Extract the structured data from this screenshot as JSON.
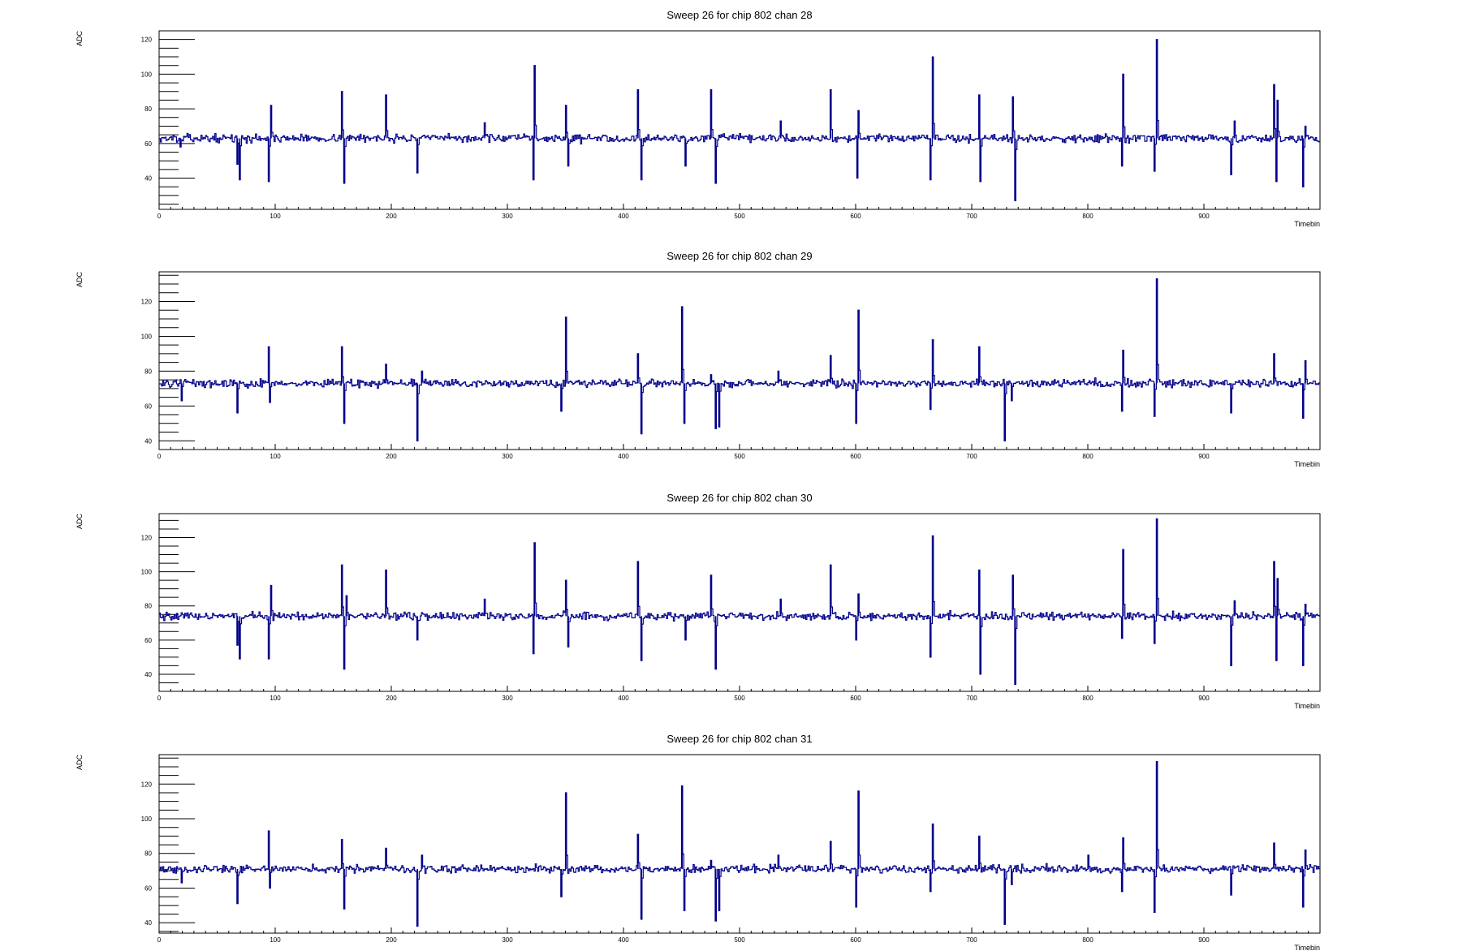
{
  "style": {
    "line_color": "#00008b",
    "frame_color": "#000000",
    "background": "#ffffff"
  },
  "chart_data": [
    {
      "type": "line",
      "title": "Sweep 26 for chip 802 chan 28",
      "xlabel": "Timebin",
      "ylabel": "ADC",
      "xlim": [
        0,
        1000
      ],
      "ylim": [
        22,
        125
      ],
      "xticks": [
        0,
        100,
        200,
        300,
        400,
        500,
        600,
        700,
        800,
        900
      ],
      "yticks": [
        40,
        60,
        80,
        100,
        120
      ],
      "baseline": 63,
      "noise": 1.6,
      "spikes": [
        [
          18,
          58
        ],
        [
          67,
          48
        ],
        [
          69,
          39
        ],
        [
          94,
          38
        ],
        [
          96,
          82
        ],
        [
          157,
          90
        ],
        [
          159,
          37
        ],
        [
          195,
          88
        ],
        [
          222,
          43
        ],
        [
          280,
          72
        ],
        [
          322,
          39
        ],
        [
          323,
          105
        ],
        [
          350,
          82
        ],
        [
          352,
          47
        ],
        [
          412,
          91
        ],
        [
          415,
          39
        ],
        [
          453,
          47
        ],
        [
          475,
          91
        ],
        [
          479,
          37
        ],
        [
          535,
          73
        ],
        [
          578,
          91
        ],
        [
          601,
          40
        ],
        [
          602,
          79
        ],
        [
          664,
          39
        ],
        [
          666,
          110
        ],
        [
          706,
          88
        ],
        [
          707,
          38
        ],
        [
          735,
          87
        ],
        [
          737,
          27
        ],
        [
          829,
          47
        ],
        [
          830,
          100
        ],
        [
          857,
          44
        ],
        [
          859,
          120
        ],
        [
          923,
          42
        ],
        [
          926,
          73
        ],
        [
          960,
          94
        ],
        [
          962,
          38
        ],
        [
          963,
          85
        ],
        [
          985,
          35
        ],
        [
          987,
          70
        ]
      ]
    },
    {
      "type": "line",
      "title": "Sweep 26 for chip 802 chan 29",
      "xlabel": "Timebin",
      "ylabel": "ADC",
      "xlim": [
        0,
        1000
      ],
      "ylim": [
        35,
        137
      ],
      "xticks": [
        0,
        100,
        200,
        300,
        400,
        500,
        600,
        700,
        800,
        900
      ],
      "yticks": [
        40,
        60,
        80,
        100,
        120
      ],
      "baseline": 73,
      "noise": 1.6,
      "spikes": [
        [
          19,
          63
        ],
        [
          67,
          56
        ],
        [
          94,
          94
        ],
        [
          95,
          62
        ],
        [
          157,
          94
        ],
        [
          159,
          50
        ],
        [
          195,
          84
        ],
        [
          222,
          40
        ],
        [
          226,
          80
        ],
        [
          346,
          57
        ],
        [
          350,
          111
        ],
        [
          412,
          90
        ],
        [
          415,
          44
        ],
        [
          450,
          117
        ],
        [
          452,
          50
        ],
        [
          475,
          78
        ],
        [
          479,
          47
        ],
        [
          482,
          48
        ],
        [
          533,
          80
        ],
        [
          578,
          89
        ],
        [
          600,
          50
        ],
        [
          602,
          115
        ],
        [
          664,
          58
        ],
        [
          666,
          98
        ],
        [
          706,
          94
        ],
        [
          728,
          40
        ],
        [
          734,
          63
        ],
        [
          829,
          57
        ],
        [
          830,
          92
        ],
        [
          857,
          54
        ],
        [
          859,
          133
        ],
        [
          923,
          56
        ],
        [
          960,
          90
        ],
        [
          985,
          53
        ],
        [
          987,
          86
        ]
      ]
    },
    {
      "type": "line",
      "title": "Sweep 26 for chip 802 chan 30",
      "xlabel": "Timebin",
      "ylabel": "ADC",
      "xlim": [
        0,
        1000
      ],
      "ylim": [
        30,
        134
      ],
      "xticks": [
        0,
        100,
        200,
        300,
        400,
        500,
        600,
        700,
        800,
        900
      ],
      "yticks": [
        40,
        60,
        80,
        100,
        120
      ],
      "baseline": 74,
      "noise": 1.6,
      "spikes": [
        [
          67,
          57
        ],
        [
          69,
          49
        ],
        [
          94,
          49
        ],
        [
          96,
          92
        ],
        [
          157,
          104
        ],
        [
          159,
          43
        ],
        [
          161,
          86
        ],
        [
          195,
          101
        ],
        [
          222,
          60
        ],
        [
          280,
          84
        ],
        [
          322,
          52
        ],
        [
          323,
          117
        ],
        [
          350,
          95
        ],
        [
          352,
          56
        ],
        [
          412,
          106
        ],
        [
          415,
          48
        ],
        [
          453,
          60
        ],
        [
          475,
          98
        ],
        [
          479,
          43
        ],
        [
          535,
          84
        ],
        [
          578,
          104
        ],
        [
          600,
          60
        ],
        [
          602,
          87
        ],
        [
          664,
          50
        ],
        [
          666,
          121
        ],
        [
          706,
          101
        ],
        [
          707,
          40
        ],
        [
          735,
          98
        ],
        [
          737,
          34
        ],
        [
          829,
          61
        ],
        [
          830,
          113
        ],
        [
          857,
          58
        ],
        [
          859,
          131
        ],
        [
          923,
          45
        ],
        [
          926,
          83
        ],
        [
          960,
          106
        ],
        [
          962,
          48
        ],
        [
          963,
          96
        ],
        [
          985,
          45
        ],
        [
          987,
          81
        ]
      ]
    },
    {
      "type": "line",
      "title": "Sweep 26 for chip 802 chan 31",
      "xlabel": "Timebin",
      "ylabel": "ADC",
      "xlim": [
        0,
        1000
      ],
      "ylim": [
        34,
        137
      ],
      "xticks": [
        0,
        100,
        200,
        300,
        400,
        500,
        600,
        700,
        800,
        900
      ],
      "yticks": [
        40,
        60,
        80,
        100,
        120
      ],
      "baseline": 71,
      "noise": 1.6,
      "spikes": [
        [
          19,
          63
        ],
        [
          67,
          51
        ],
        [
          94,
          93
        ],
        [
          95,
          60
        ],
        [
          157,
          88
        ],
        [
          159,
          48
        ],
        [
          195,
          83
        ],
        [
          222,
          38
        ],
        [
          226,
          79
        ],
        [
          346,
          55
        ],
        [
          350,
          115
        ],
        [
          412,
          91
        ],
        [
          415,
          42
        ],
        [
          450,
          119
        ],
        [
          452,
          47
        ],
        [
          475,
          76
        ],
        [
          479,
          41
        ],
        [
          482,
          47
        ],
        [
          533,
          79
        ],
        [
          578,
          87
        ],
        [
          600,
          49
        ],
        [
          602,
          116
        ],
        [
          664,
          58
        ],
        [
          666,
          97
        ],
        [
          706,
          90
        ],
        [
          728,
          39
        ],
        [
          734,
          62
        ],
        [
          800,
          79
        ],
        [
          829,
          58
        ],
        [
          830,
          89
        ],
        [
          857,
          46
        ],
        [
          859,
          133
        ],
        [
          923,
          56
        ],
        [
          960,
          86
        ],
        [
          985,
          49
        ],
        [
          987,
          82
        ]
      ]
    }
  ]
}
